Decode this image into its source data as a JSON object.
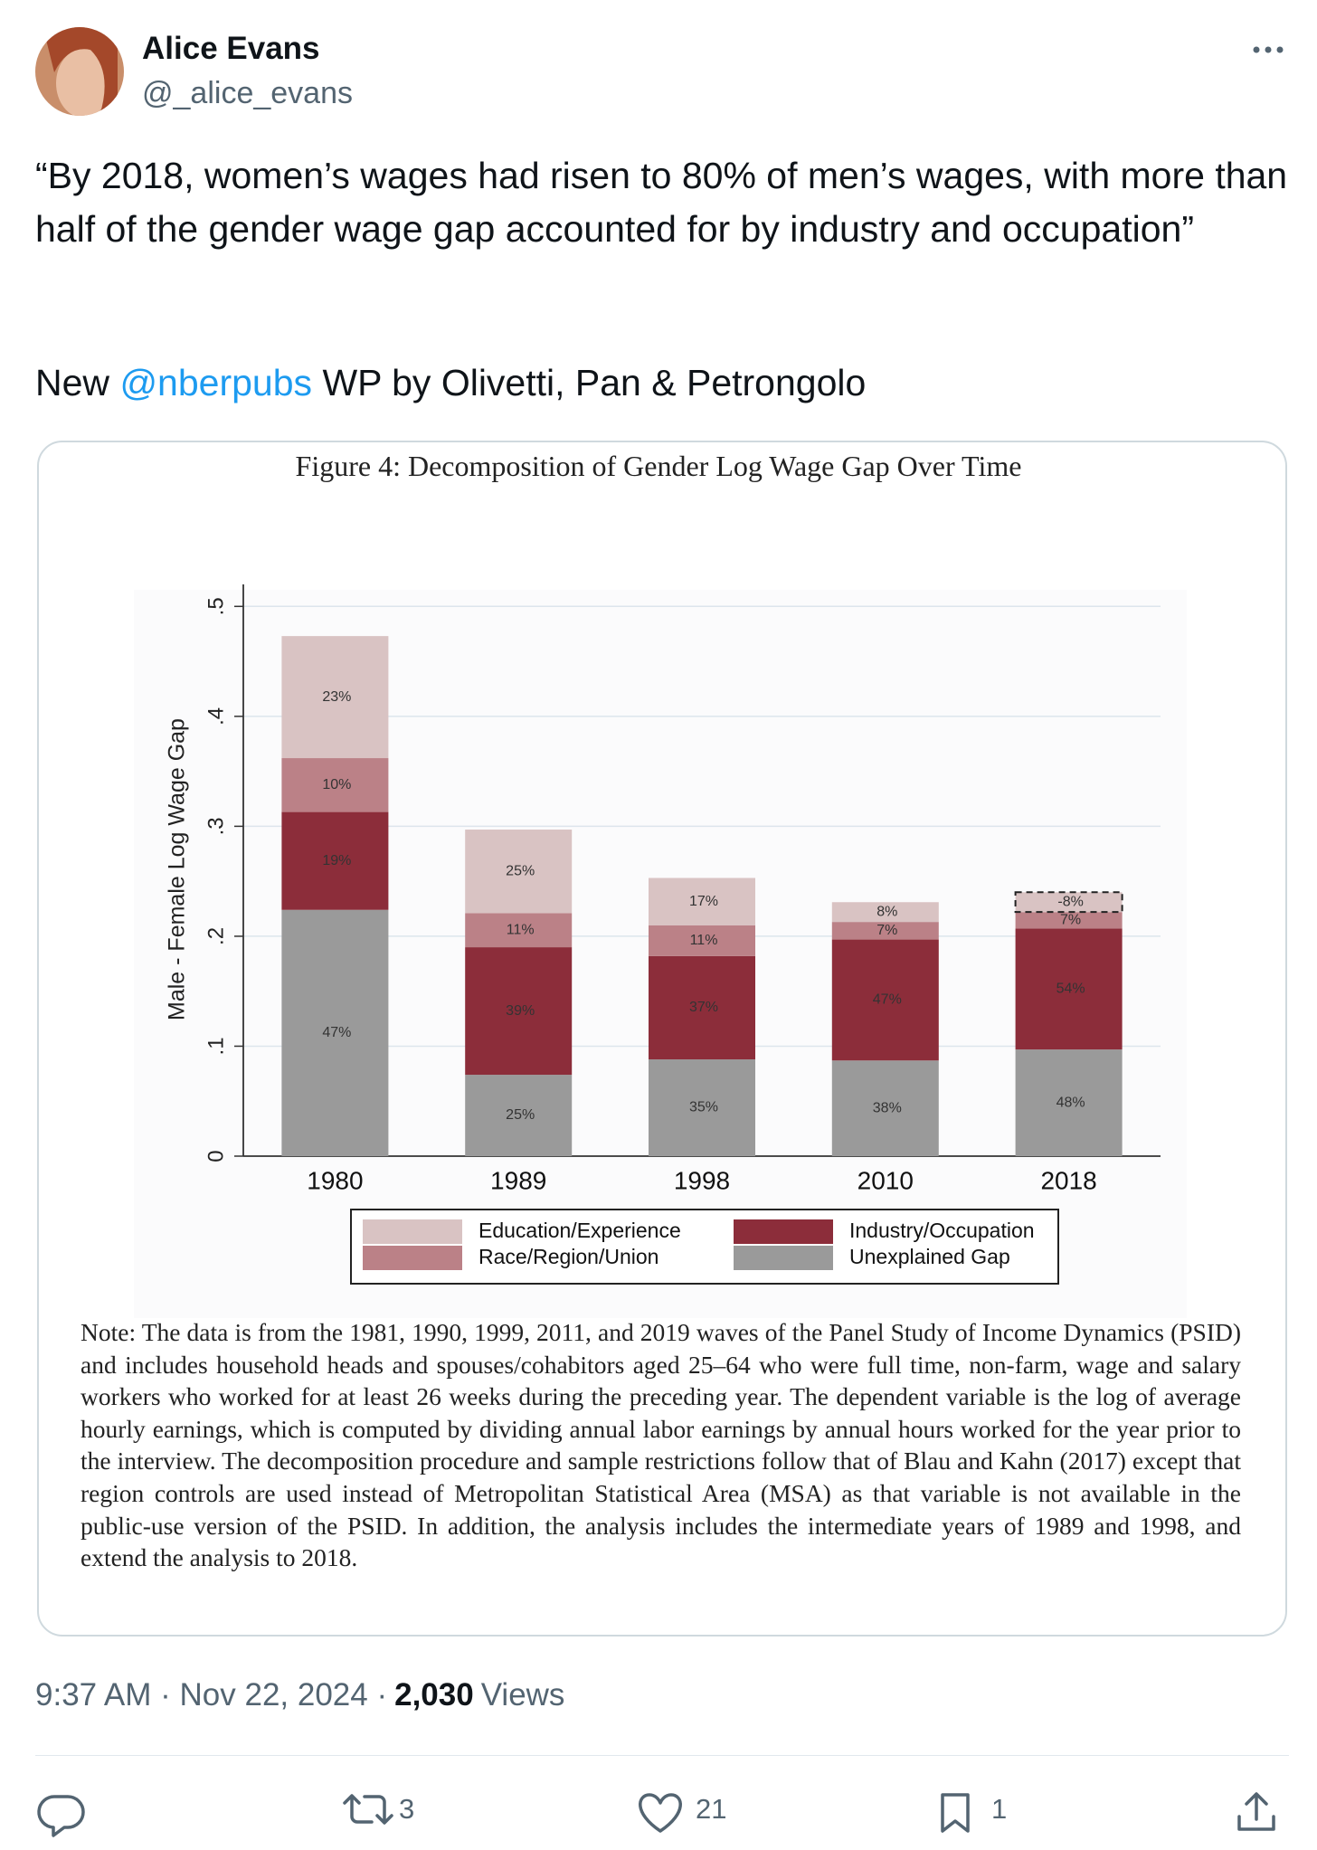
{
  "author": {
    "name": "Alice Evans",
    "handle": "@_alice_evans"
  },
  "tweet": {
    "quote": "“By 2018, women’s wages had risen to 80% of men’s wages, with more than half of the gender wage gap accounted for by industry and occupation”",
    "prefix": "New",
    "mention": "@nberpubs",
    "suffix": "WP by Olivetti, Pan & Petrongolo"
  },
  "figure": {
    "title": "Figure 4: Decomposition of Gender Log Wage Gap Over Time",
    "note": "Note: The data is from the 1981, 1990, 1999, 2011, and 2019 waves of the Panel Study of Income Dynamics (PSID) and includes household heads and spouses/cohabitors aged 25–64 who were full time, non-farm, wage and salary workers who worked for at least 26 weeks during the preceding year. The dependent variable is the log of average hourly earnings, which is computed by dividing annual labor earnings by annual hours worked for the year prior to the interview. The decomposition procedure and sample restrictions follow that of Blau and Kahn (2017) except that region controls are used instead of Metropolitan Statistical Area (MSA) as that variable is not available in the public-use version of the PSID. In addition, the analysis includes the intermediate years of 1989 and 1998, and extend the analysis to 2018."
  },
  "chart_data": {
    "type": "bar",
    "stacked": true,
    "ylabel": "Male - Female Log Wage Gap",
    "categories": [
      "1980",
      "1989",
      "1998",
      "2010",
      "2018"
    ],
    "ylim": [
      0,
      0.52
    ],
    "yticks": [
      0,
      {
        "value": 0.1,
        "label": ".1"
      },
      {
        "value": 0.2,
        "label": ".2"
      },
      {
        "value": 0.3,
        "label": ".3"
      },
      {
        "value": 0.4,
        "label": ".4"
      },
      {
        "value": 0.5,
        "label": ".5"
      }
    ],
    "grid": true,
    "series": [
      {
        "name": "Unexplained Gap",
        "color": "#9a9a9a",
        "values": [
          0.224,
          0.074,
          0.088,
          0.087,
          0.097
        ],
        "segment_labels": [
          "47%",
          "25%",
          "35%",
          "38%",
          "48%"
        ]
      },
      {
        "name": "Industry/Occupation",
        "color": "#8c2d3a",
        "values": [
          0.089,
          0.116,
          0.094,
          0.11,
          0.11
        ],
        "segment_labels": [
          "19%",
          "39%",
          "37%",
          "47%",
          "54%"
        ]
      },
      {
        "name": "Race/Region/Union",
        "color": "#bb8187",
        "values": [
          0.049,
          0.031,
          0.028,
          0.016,
          0.015
        ],
        "segment_labels": [
          "10%",
          "11%",
          "11%",
          "7%",
          "7%"
        ]
      },
      {
        "name": "Education/Experience",
        "color": "#d9c3c3",
        "values": [
          0.111,
          0.076,
          0.043,
          0.018,
          -0.018
        ],
        "segment_labels": [
          "23%",
          "25%",
          "17%",
          "8%",
          "-8%"
        ]
      }
    ]
  },
  "meta": {
    "timestamp": "9:37 AM · Nov 22, 2024 ·",
    "views": "2,030",
    "views_label": "Views"
  },
  "actions": {
    "retweets": 3,
    "likes": 21,
    "bookmarks": 1
  }
}
